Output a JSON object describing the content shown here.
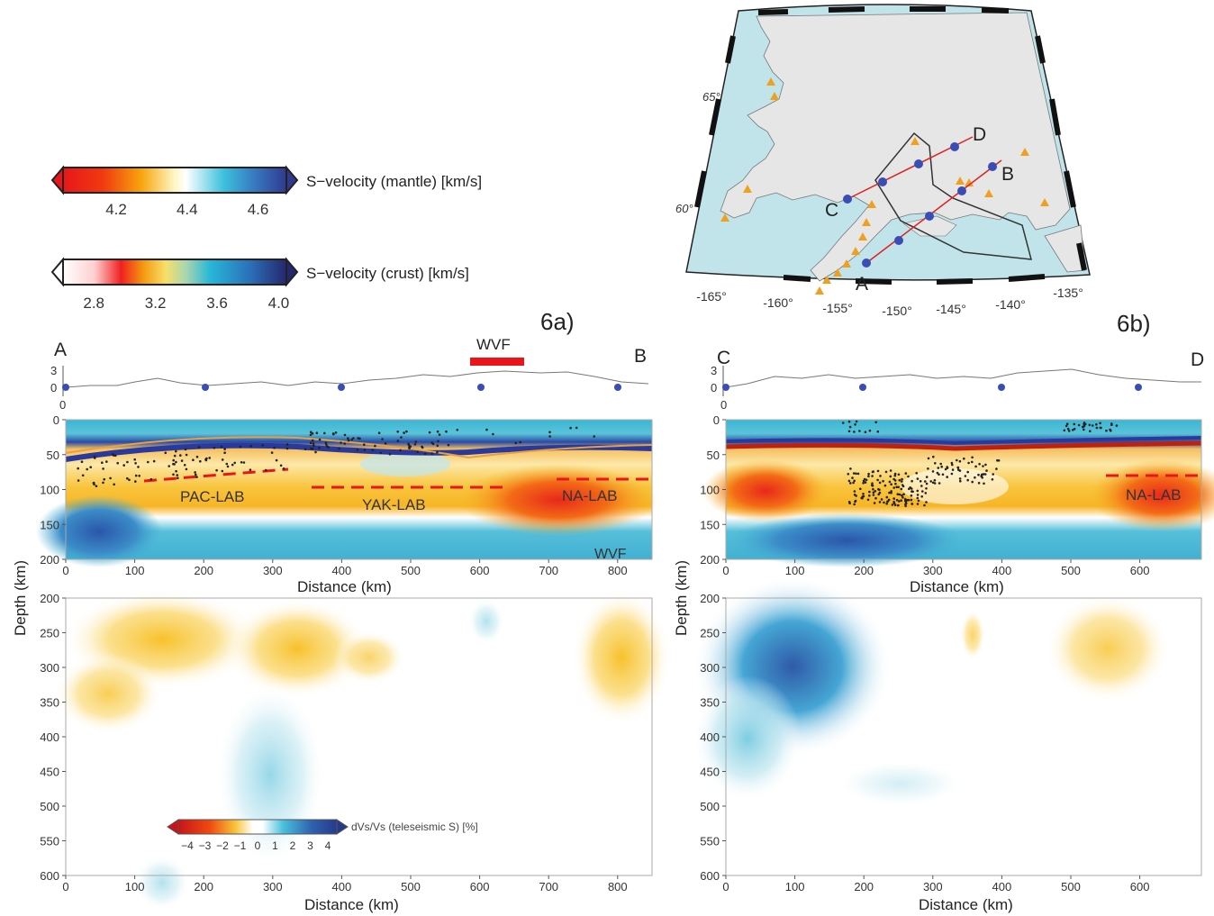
{
  "figure_labels": {
    "left": "6a)",
    "right": "6b)"
  },
  "colorbars": {
    "mantle": {
      "label": "S−velocity (mantle) [km/s]",
      "ticks": [
        "4.2",
        "4.4",
        "4.6"
      ],
      "range": [
        4.05,
        4.68
      ]
    },
    "crust": {
      "label": "S−velocity (crust) [km/s]",
      "ticks": [
        "2.8",
        "3.2",
        "3.6",
        "4.0"
      ],
      "range": [
        2.6,
        4.05
      ]
    },
    "teleseismic": {
      "label": "dVs/Vs (teleseismic S) [%]",
      "ticks": [
        "−4",
        "−3",
        "−2",
        "−1",
        "0",
        "1",
        "2",
        "3",
        "4"
      ]
    }
  },
  "map": {
    "lat_labels": [
      "65°",
      "60°"
    ],
    "lon_labels": [
      "-165°",
      "-160°",
      "-155°",
      "-150°",
      "-145°",
      "-140°",
      "-135°"
    ],
    "profile_points": {
      "A": "A",
      "B": "B",
      "C": "C",
      "D": "D"
    }
  },
  "panel_a": {
    "start": "A",
    "end": "B",
    "wvf_top": "WVF",
    "wvf_bottom": "WVF",
    "topo_yticks": [
      "3",
      "0"
    ],
    "topo_xtick": "0",
    "labels": {
      "pac_lab": "PAC-LAB",
      "yak_lab": "YAK-LAB",
      "na_lab": "NA-LAB"
    },
    "upper_yticks": [
      "0",
      "50",
      "100",
      "150",
      "200"
    ],
    "upper_xticks": [
      "0",
      "100",
      "200",
      "300",
      "400",
      "500",
      "600",
      "700",
      "800"
    ],
    "lower_yticks": [
      "200",
      "250",
      "300",
      "350",
      "400",
      "450",
      "500",
      "550",
      "600"
    ],
    "lower_xticks": [
      "0",
      "100",
      "200",
      "300",
      "400",
      "500",
      "600",
      "700",
      "800"
    ],
    "xlabel_upper": "Distance (km)",
    "xlabel_lower": "Distance (km)",
    "ylabel": "Depth (km)"
  },
  "panel_b": {
    "start": "C",
    "end": "D",
    "topo_yticks": [
      "3",
      "0"
    ],
    "topo_xtick": "0",
    "labels": {
      "na_lab": "NA-LAB"
    },
    "upper_yticks": [
      "0",
      "50",
      "100",
      "150",
      "200"
    ],
    "upper_xticks": [
      "0",
      "100",
      "200",
      "300",
      "400",
      "500",
      "600"
    ],
    "lower_yticks": [
      "200",
      "250",
      "300",
      "350",
      "400",
      "450",
      "500",
      "550",
      "600"
    ],
    "lower_xticks": [
      "0",
      "100",
      "200",
      "300",
      "400",
      "500",
      "600"
    ],
    "xlabel_upper": "Distance (km)",
    "xlabel_lower": "Distance (km)",
    "ylabel": "Depth (km)"
  },
  "colors": {
    "red": "#e8161b",
    "orange": "#f58a0b",
    "yellow": "#f7d23a",
    "cyan": "#2bb4d6",
    "blue": "#2f3a8f",
    "land": "#e4e4e4",
    "water": "#bfe3ea"
  }
}
